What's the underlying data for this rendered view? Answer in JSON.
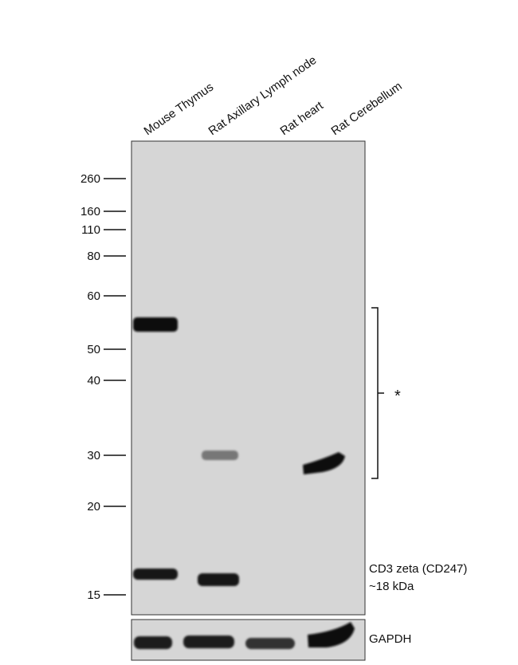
{
  "lanes": [
    "Mouse Thymus",
    "Rat Axillary Lymph node",
    "Rat heart",
    "Rat Cerebellum"
  ],
  "markers": [
    260,
    160,
    110,
    80,
    60,
    50,
    40,
    30,
    20,
    15
  ],
  "annotations": {
    "asterisk": "*",
    "target": "CD3 zeta (CD247)",
    "size": "~18 kDa",
    "loading_control": "GAPDH"
  }
}
